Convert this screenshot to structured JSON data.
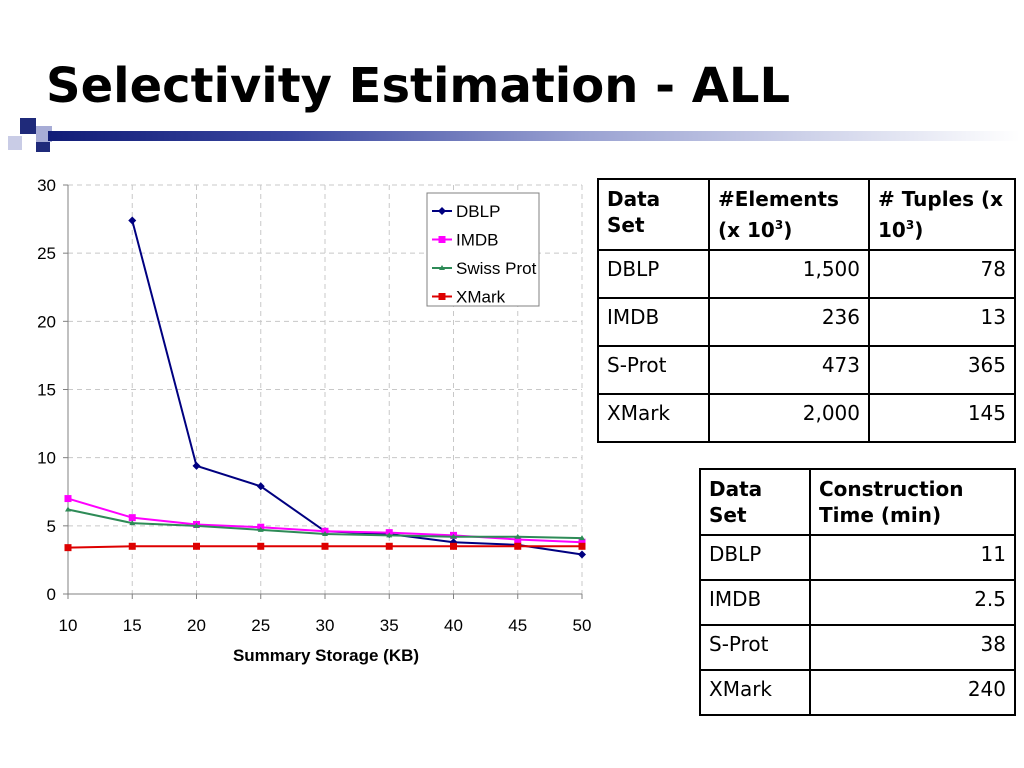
{
  "slide": {
    "title": "Selectivity Estimation - ALL"
  },
  "colors": {
    "title_bar_start": "#111c77",
    "square_dark": "#1f2a7a",
    "square_light": "#a7acd6"
  },
  "chart_data": {
    "type": "line",
    "title": "",
    "xlabel": "Summary Storage (KB)",
    "ylabel": "",
    "xlim": [
      10,
      50
    ],
    "ylim": [
      0,
      30
    ],
    "x_ticks": [
      10,
      15,
      20,
      25,
      30,
      35,
      40,
      45,
      50
    ],
    "y_ticks": [
      0,
      5,
      10,
      15,
      20,
      25,
      30
    ],
    "grid": true,
    "legend_position": "top-right",
    "series": [
      {
        "name": "DBLP",
        "color": "#000080",
        "marker": "diamond",
        "x": [
          15,
          20,
          25,
          30,
          35,
          40,
          45,
          50
        ],
        "y": [
          27.4,
          9.4,
          7.9,
          4.6,
          4.4,
          3.8,
          3.6,
          2.9
        ]
      },
      {
        "name": "IMDB",
        "color": "#ff00ff",
        "marker": "square",
        "x": [
          10,
          15,
          20,
          25,
          30,
          35,
          40,
          45,
          50
        ],
        "y": [
          7.0,
          5.6,
          5.1,
          4.9,
          4.6,
          4.5,
          4.3,
          4.0,
          3.8
        ]
      },
      {
        "name": "Swiss Prot",
        "color": "#2e8b57",
        "marker": "triangle",
        "x": [
          10,
          15,
          20,
          25,
          30,
          35,
          40,
          45,
          50
        ],
        "y": [
          6.2,
          5.2,
          5.0,
          4.7,
          4.4,
          4.3,
          4.2,
          4.2,
          4.1
        ]
      },
      {
        "name": "XMark",
        "color": "#dd0000",
        "marker": "square",
        "x": [
          10,
          15,
          20,
          25,
          30,
          35,
          40,
          45,
          50
        ],
        "y": [
          3.4,
          3.5,
          3.5,
          3.5,
          3.5,
          3.5,
          3.5,
          3.5,
          3.5
        ]
      }
    ]
  },
  "table_sizes": {
    "headers": [
      "Data Set",
      "#Elements (x 10",
      "# Tuples (x 10"
    ],
    "header_sup": "3",
    "header_suffix": ")",
    "rows": [
      {
        "set": "DBLP",
        "elements": "1,500",
        "tuples": "78"
      },
      {
        "set": "IMDB",
        "elements": "236",
        "tuples": "13"
      },
      {
        "set": "S-Prot",
        "elements": "473",
        "tuples": "365"
      },
      {
        "set": "XMark",
        "elements": "2,000",
        "tuples": "145"
      }
    ]
  },
  "table_times": {
    "headers": [
      "Data Set",
      "Construction Time (min)"
    ],
    "rows": [
      {
        "set": "DBLP",
        "time": "11"
      },
      {
        "set": "IMDB",
        "time": "2.5"
      },
      {
        "set": "S-Prot",
        "time": "38"
      },
      {
        "set": "XMark",
        "time": "240"
      }
    ]
  }
}
